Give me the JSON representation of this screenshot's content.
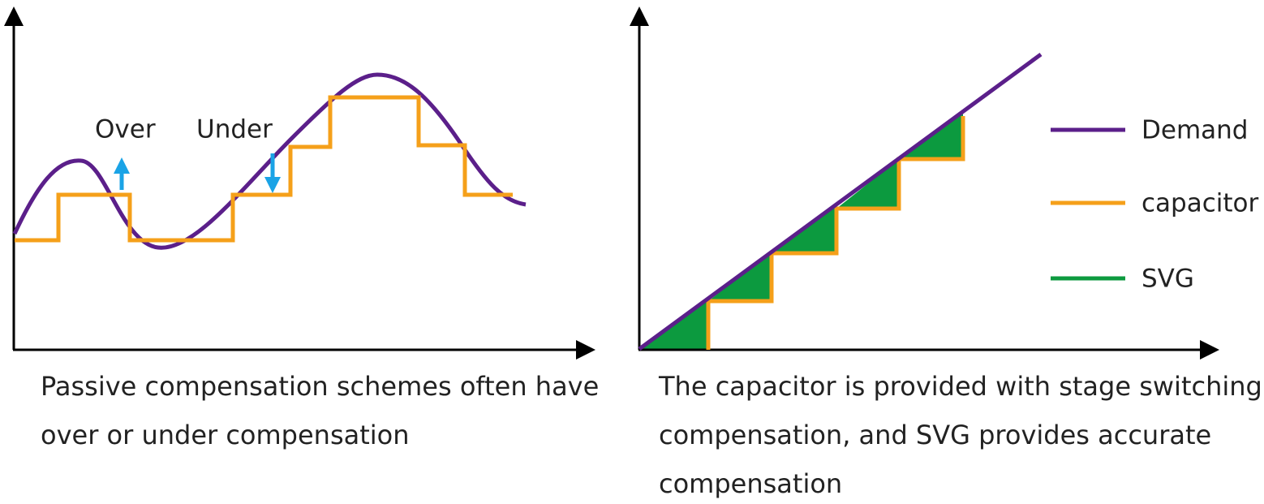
{
  "left": {
    "labels": {
      "over": "Over",
      "under": "Under"
    },
    "caption": [
      "Passive compensation schemes often have",
      "over or under compensation"
    ]
  },
  "right": {
    "legend": [
      "Demand",
      "capacitor",
      "SVG"
    ],
    "caption": [
      "The capacitor is provided with stage switching",
      "compensation, and SVG provides accurate",
      "compensation"
    ]
  }
}
